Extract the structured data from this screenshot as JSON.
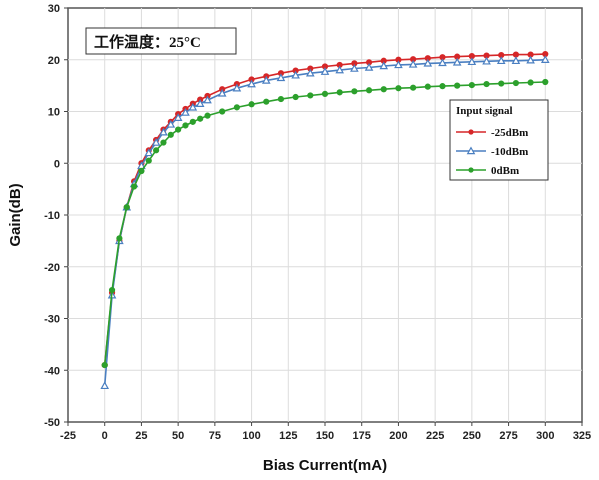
{
  "chart_data": {
    "type": "line",
    "title": "",
    "annotation": "工作温度：25°C",
    "xlabel": "Bias Current(mA)",
    "ylabel": "Gain(dB)",
    "xlim": [
      -25,
      325
    ],
    "ylim": [
      -50,
      30
    ],
    "xticks": [
      "-25",
      "0",
      "25",
      "50",
      "75",
      "100",
      "125",
      "150",
      "175",
      "200",
      "225",
      "250",
      "275",
      "300",
      "325"
    ],
    "yticks": [
      "30",
      "20",
      "10",
      "0",
      "-10",
      "-20",
      "-30",
      "-40",
      "-50"
    ],
    "grid": true,
    "legend": {
      "title": "Input signal",
      "position": "right"
    },
    "x": [
      0,
      5,
      10,
      15,
      20,
      25,
      30,
      35,
      40,
      45,
      50,
      55,
      60,
      65,
      70,
      80,
      90,
      100,
      110,
      120,
      130,
      140,
      150,
      160,
      170,
      180,
      190,
      200,
      210,
      220,
      230,
      240,
      250,
      260,
      270,
      280,
      290,
      300
    ],
    "series": [
      {
        "name": "-25dBm",
        "color": "#d62728",
        "marker": "circle",
        "values": [
          -39,
          -25,
          -15,
          -8.5,
          -3.5,
          0,
          2.5,
          4.5,
          6.5,
          8,
          9.5,
          10.5,
          11.5,
          12.3,
          13,
          14.3,
          15.3,
          16.2,
          16.8,
          17.4,
          17.9,
          18.3,
          18.7,
          19,
          19.3,
          19.5,
          19.8,
          20,
          20.1,
          20.3,
          20.5,
          20.6,
          20.7,
          20.8,
          20.9,
          21,
          21,
          21.1
        ]
      },
      {
        "name": "-10dBm",
        "color": "#4a7fc1",
        "marker": "triangle",
        "values": [
          -43,
          -25.5,
          -15,
          -8.5,
          -4,
          -0.5,
          2,
          4,
          6,
          7.5,
          8.8,
          9.8,
          10.8,
          11.5,
          12.2,
          13.5,
          14.5,
          15.3,
          16,
          16.5,
          17,
          17.4,
          17.7,
          18,
          18.3,
          18.5,
          18.8,
          19,
          19.1,
          19.3,
          19.4,
          19.5,
          19.6,
          19.7,
          19.8,
          19.8,
          19.9,
          20
        ]
      },
      {
        "name": "0dBm",
        "color": "#2ca02c",
        "marker": "circle",
        "values": [
          -39,
          -24.5,
          -14.5,
          -8.5,
          -4.5,
          -1.5,
          0.5,
          2.5,
          4,
          5.5,
          6.5,
          7.3,
          8,
          8.6,
          9.2,
          10,
          10.8,
          11.4,
          11.9,
          12.4,
          12.8,
          13.1,
          13.4,
          13.7,
          13.9,
          14.1,
          14.3,
          14.5,
          14.6,
          14.8,
          14.9,
          15,
          15.1,
          15.3,
          15.4,
          15.5,
          15.6,
          15.7
        ]
      }
    ]
  }
}
